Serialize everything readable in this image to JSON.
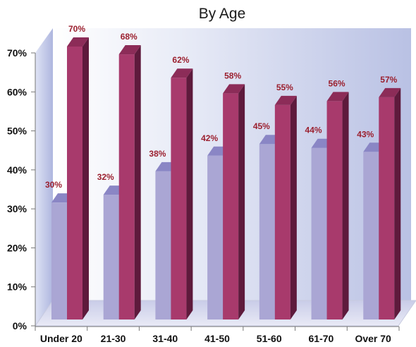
{
  "chart_data": {
    "type": "bar",
    "title": "By Age",
    "categories": [
      "Under 20",
      "21-30",
      "31-40",
      "41-50",
      "51-60",
      "61-70",
      "Over 70"
    ],
    "series": [
      {
        "values": [
          30,
          32,
          38,
          42,
          45,
          44,
          43
        ],
        "color": "#aaa6d4",
        "labels": [
          "30%",
          "32%",
          "38%",
          "42%",
          "45%",
          "44%",
          "43%"
        ]
      },
      {
        "values": [
          70,
          68,
          62,
          58,
          55,
          56,
          57
        ],
        "color": "#a83a6c",
        "labels": [
          "70%",
          "68%",
          "62%",
          "58%",
          "55%",
          "56%",
          "57%"
        ]
      }
    ],
    "yticks": [
      "0%",
      "10%",
      "20%",
      "30%",
      "40%",
      "50%",
      "60%",
      "70%"
    ],
    "ylim": [
      0,
      70
    ],
    "grid": false,
    "legend": "none",
    "style": "3d-columns"
  }
}
